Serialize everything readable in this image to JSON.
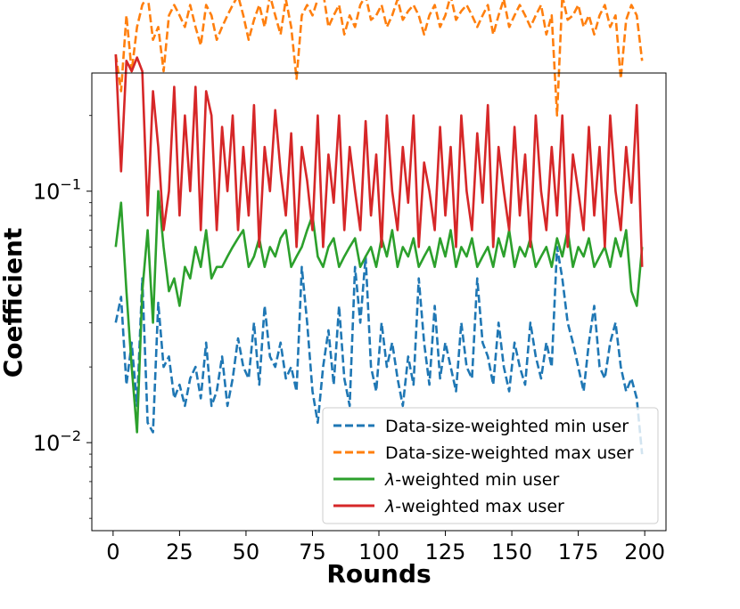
{
  "chart_data": {
    "type": "line",
    "title": "",
    "xlabel": "Rounds",
    "ylabel": "Coefficient",
    "xlim": [
      -8,
      208
    ],
    "ylim_log10": [
      -2.35,
      -0.53
    ],
    "yscale": "log",
    "grid": false,
    "legend_position": "lower-right",
    "x_ticks": [
      0,
      25,
      50,
      75,
      100,
      125,
      150,
      175,
      200
    ],
    "x_tick_labels": [
      "0",
      "25",
      "50",
      "75",
      "100",
      "125",
      "150",
      "175",
      "200"
    ],
    "y_ticks": [
      0.01,
      0.1
    ],
    "y_tick_labels": [
      {
        "base": "10",
        "exp": "−2"
      },
      {
        "base": "10",
        "exp": "−1"
      }
    ],
    "series": [
      {
        "name": "Data-size-weighted min user",
        "color": "#1f77b4",
        "dash": "dashed",
        "x": [
          1,
          3,
          5,
          7,
          9,
          11,
          13,
          15,
          17,
          19,
          21,
          23,
          25,
          27,
          29,
          31,
          33,
          35,
          37,
          39,
          41,
          43,
          45,
          47,
          49,
          51,
          53,
          55,
          57,
          59,
          61,
          63,
          65,
          67,
          69,
          71,
          73,
          75,
          77,
          79,
          81,
          83,
          85,
          87,
          89,
          91,
          93,
          95,
          97,
          99,
          101,
          103,
          105,
          107,
          109,
          111,
          113,
          115,
          117,
          119,
          121,
          123,
          125,
          127,
          129,
          131,
          133,
          135,
          137,
          139,
          141,
          143,
          145,
          147,
          149,
          151,
          153,
          155,
          157,
          159,
          161,
          163,
          165,
          167,
          169,
          171,
          173,
          175,
          177,
          179,
          181,
          183,
          185,
          187,
          189,
          191,
          193,
          195,
          197,
          199
        ],
        "y": [
          0.03,
          0.038,
          0.017,
          0.025,
          0.014,
          0.045,
          0.012,
          0.011,
          0.036,
          0.02,
          0.022,
          0.015,
          0.017,
          0.014,
          0.018,
          0.02,
          0.015,
          0.025,
          0.014,
          0.016,
          0.022,
          0.014,
          0.018,
          0.026,
          0.02,
          0.018,
          0.03,
          0.017,
          0.035,
          0.022,
          0.02,
          0.025,
          0.018,
          0.02,
          0.016,
          0.05,
          0.03,
          0.016,
          0.012,
          0.02,
          0.028,
          0.017,
          0.035,
          0.018,
          0.014,
          0.05,
          0.03,
          0.055,
          0.02,
          0.016,
          0.03,
          0.02,
          0.025,
          0.018,
          0.014,
          0.022,
          0.017,
          0.045,
          0.025,
          0.017,
          0.035,
          0.018,
          0.025,
          0.02,
          0.016,
          0.03,
          0.02,
          0.018,
          0.045,
          0.025,
          0.022,
          0.017,
          0.03,
          0.02,
          0.016,
          0.025,
          0.02,
          0.017,
          0.03,
          0.022,
          0.018,
          0.025,
          0.02,
          0.06,
          0.045,
          0.03,
          0.025,
          0.02,
          0.016,
          0.025,
          0.035,
          0.02,
          0.018,
          0.025,
          0.03,
          0.02,
          0.016,
          0.018,
          0.015,
          0.009
        ]
      },
      {
        "name": "Data-size-weighted max user",
        "color": "#ff7f0e",
        "dash": "dashed",
        "x": [
          1,
          3,
          5,
          7,
          9,
          11,
          13,
          15,
          17,
          19,
          21,
          23,
          25,
          27,
          29,
          31,
          33,
          35,
          37,
          39,
          41,
          43,
          45,
          47,
          49,
          51,
          53,
          55,
          57,
          59,
          61,
          63,
          65,
          67,
          69,
          71,
          73,
          75,
          77,
          79,
          81,
          83,
          85,
          87,
          89,
          91,
          93,
          95,
          97,
          99,
          101,
          103,
          105,
          107,
          109,
          111,
          113,
          115,
          117,
          119,
          121,
          123,
          125,
          127,
          129,
          131,
          133,
          135,
          137,
          139,
          141,
          143,
          145,
          147,
          149,
          151,
          153,
          155,
          157,
          159,
          161,
          163,
          165,
          167,
          169,
          171,
          173,
          175,
          177,
          179,
          181,
          183,
          185,
          187,
          189,
          191,
          193,
          195,
          197,
          199
        ],
        "y": [
          0.35,
          0.25,
          0.5,
          0.3,
          0.45,
          0.55,
          0.6,
          0.4,
          0.45,
          0.3,
          0.5,
          0.55,
          0.5,
          0.45,
          0.55,
          0.45,
          0.38,
          0.55,
          0.5,
          0.4,
          0.45,
          0.5,
          0.55,
          0.6,
          0.5,
          0.4,
          0.48,
          0.55,
          0.45,
          0.6,
          0.5,
          0.42,
          0.58,
          0.45,
          0.28,
          0.5,
          0.55,
          0.5,
          0.58,
          0.62,
          0.45,
          0.5,
          0.55,
          0.42,
          0.5,
          0.45,
          0.55,
          0.6,
          0.48,
          0.5,
          0.55,
          0.45,
          0.5,
          0.58,
          0.48,
          0.52,
          0.55,
          0.5,
          0.42,
          0.5,
          0.55,
          0.45,
          0.5,
          0.6,
          0.48,
          0.52,
          0.55,
          0.5,
          0.45,
          0.5,
          0.55,
          0.42,
          0.5,
          0.58,
          0.45,
          0.5,
          0.55,
          0.5,
          0.45,
          0.5,
          0.55,
          0.42,
          0.5,
          0.2,
          0.6,
          0.48,
          0.5,
          0.55,
          0.45,
          0.5,
          0.42,
          0.5,
          0.55,
          0.45,
          0.5,
          0.28,
          0.48,
          0.55,
          0.5,
          0.33
        ]
      },
      {
        "name": "λ-weighted min user",
        "color": "#2ca02c",
        "dash": "solid",
        "x": [
          1,
          3,
          5,
          7,
          9,
          11,
          13,
          15,
          17,
          19,
          21,
          23,
          25,
          27,
          29,
          31,
          33,
          35,
          37,
          39,
          41,
          43,
          45,
          47,
          49,
          51,
          53,
          55,
          57,
          59,
          61,
          63,
          65,
          67,
          69,
          71,
          73,
          75,
          77,
          79,
          81,
          83,
          85,
          87,
          89,
          91,
          93,
          95,
          97,
          99,
          101,
          103,
          105,
          107,
          109,
          111,
          113,
          115,
          117,
          119,
          121,
          123,
          125,
          127,
          129,
          131,
          133,
          135,
          137,
          139,
          141,
          143,
          145,
          147,
          149,
          151,
          153,
          155,
          157,
          159,
          161,
          163,
          165,
          167,
          169,
          171,
          173,
          175,
          177,
          179,
          181,
          183,
          185,
          187,
          189,
          191,
          193,
          195,
          197,
          199
        ],
        "y": [
          0.06,
          0.09,
          0.04,
          0.02,
          0.011,
          0.04,
          0.07,
          0.03,
          0.1,
          0.06,
          0.04,
          0.045,
          0.035,
          0.05,
          0.045,
          0.06,
          0.05,
          0.07,
          0.045,
          0.05,
          0.05,
          0.055,
          0.06,
          0.065,
          0.07,
          0.05,
          0.055,
          0.065,
          0.05,
          0.06,
          0.055,
          0.065,
          0.07,
          0.05,
          0.055,
          0.06,
          0.07,
          0.08,
          0.055,
          0.05,
          0.06,
          0.065,
          0.05,
          0.055,
          0.06,
          0.065,
          0.05,
          0.055,
          0.06,
          0.05,
          0.065,
          0.055,
          0.07,
          0.05,
          0.06,
          0.055,
          0.065,
          0.05,
          0.055,
          0.06,
          0.05,
          0.065,
          0.055,
          0.07,
          0.05,
          0.06,
          0.055,
          0.065,
          0.05,
          0.055,
          0.06,
          0.05,
          0.065,
          0.055,
          0.07,
          0.05,
          0.06,
          0.055,
          0.065,
          0.05,
          0.055,
          0.06,
          0.05,
          0.065,
          0.055,
          0.07,
          0.05,
          0.06,
          0.055,
          0.065,
          0.05,
          0.055,
          0.06,
          0.05,
          0.065,
          0.055,
          0.07,
          0.04,
          0.035,
          0.06
        ]
      },
      {
        "name": "λ-weighted max user",
        "color": "#d62728",
        "dash": "solid",
        "x": [
          1,
          3,
          5,
          7,
          9,
          11,
          13,
          15,
          17,
          19,
          21,
          23,
          25,
          27,
          29,
          31,
          33,
          35,
          37,
          39,
          41,
          43,
          45,
          47,
          49,
          51,
          53,
          55,
          57,
          59,
          61,
          63,
          65,
          67,
          69,
          71,
          73,
          75,
          77,
          79,
          81,
          83,
          85,
          87,
          89,
          91,
          93,
          95,
          97,
          99,
          101,
          103,
          105,
          107,
          109,
          111,
          113,
          115,
          117,
          119,
          121,
          123,
          125,
          127,
          129,
          131,
          133,
          135,
          137,
          139,
          141,
          143,
          145,
          147,
          149,
          151,
          153,
          155,
          157,
          159,
          161,
          163,
          165,
          167,
          169,
          171,
          173,
          175,
          177,
          179,
          181,
          183,
          185,
          187,
          189,
          191,
          193,
          195,
          197,
          199
        ],
        "y": [
          0.35,
          0.12,
          0.33,
          0.3,
          0.34,
          0.3,
          0.08,
          0.25,
          0.15,
          0.07,
          0.1,
          0.26,
          0.08,
          0.2,
          0.1,
          0.26,
          0.07,
          0.25,
          0.2,
          0.07,
          0.18,
          0.1,
          0.2,
          0.07,
          0.15,
          0.08,
          0.22,
          0.06,
          0.15,
          0.1,
          0.21,
          0.12,
          0.08,
          0.17,
          0.06,
          0.15,
          0.11,
          0.07,
          0.2,
          0.06,
          0.14,
          0.09,
          0.2,
          0.07,
          0.15,
          0.1,
          0.07,
          0.19,
          0.08,
          0.14,
          0.06,
          0.2,
          0.1,
          0.07,
          0.15,
          0.09,
          0.2,
          0.06,
          0.13,
          0.1,
          0.07,
          0.18,
          0.08,
          0.15,
          0.06,
          0.2,
          0.1,
          0.07,
          0.17,
          0.09,
          0.22,
          0.06,
          0.15,
          0.1,
          0.07,
          0.18,
          0.08,
          0.14,
          0.06,
          0.2,
          0.1,
          0.07,
          0.15,
          0.08,
          0.2,
          0.06,
          0.14,
          0.1,
          0.07,
          0.18,
          0.08,
          0.15,
          0.06,
          0.2,
          0.1,
          0.07,
          0.15,
          0.09,
          0.22,
          0.05
        ]
      }
    ]
  }
}
